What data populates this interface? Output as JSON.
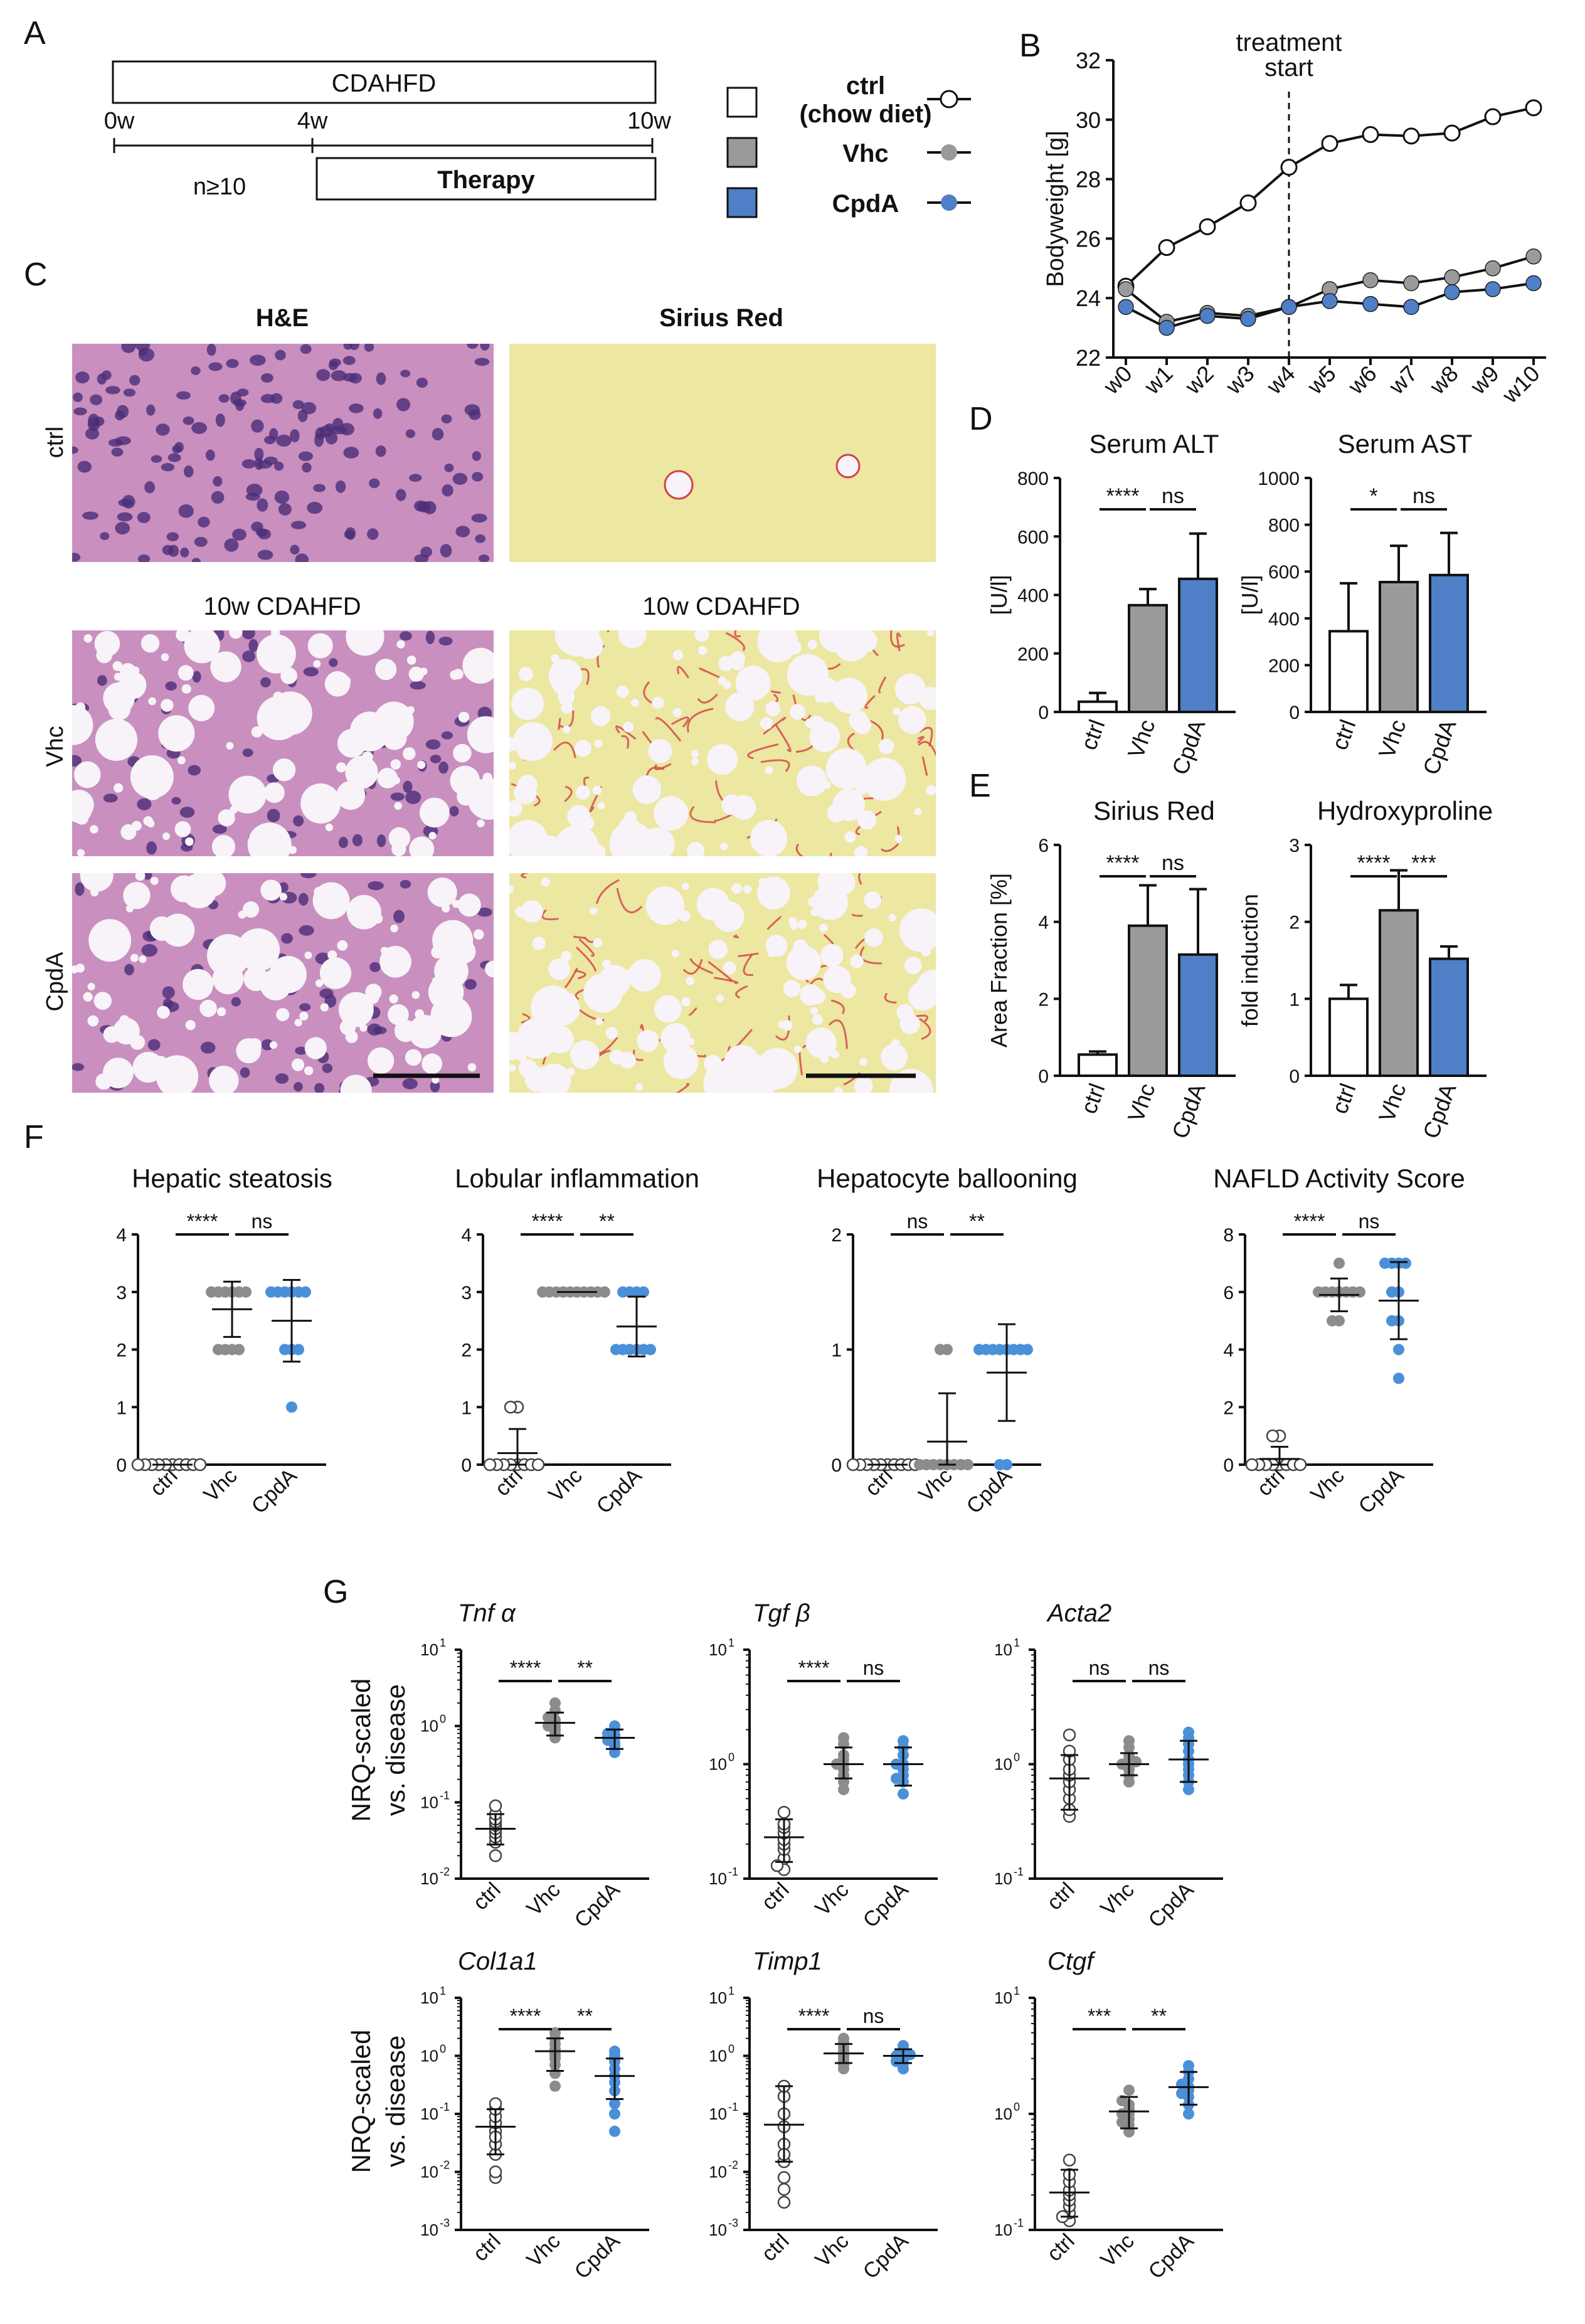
{
  "panel_letters": {
    "A": "A",
    "B": "B",
    "C": "C",
    "D": "D",
    "E": "E",
    "F": "F",
    "G": "G"
  },
  "scheme": {
    "diet_label": "CDAHFD",
    "therapy_label": "Therapy",
    "n_label": "n≥10",
    "timepoints": [
      "0w",
      "4w",
      "10w"
    ]
  },
  "legend": [
    {
      "label": "ctrl",
      "sublabel": "(chow diet)",
      "color": "#ffffff"
    },
    {
      "label": "Vhc",
      "sublabel": "",
      "color": "#9a9a9a"
    },
    {
      "label": "CpdA",
      "sublabel": "",
      "color": "#4f7fc7"
    }
  ],
  "histology": {
    "col_titles": [
      "H&E",
      "Sirius Red"
    ],
    "row_labels": [
      "ctrl",
      "Vhc",
      "CpdA"
    ],
    "section_label": "10w CDAHFD",
    "colors": {
      "he_bg": "#c98fbf",
      "he_nuclei": "#4b2d78",
      "sr_bg": "#ece7a1",
      "sr_fiber": "#d4404a",
      "vacuole": "#f7f3f8"
    }
  },
  "chart_data": [
    {
      "id": "B",
      "type": "line",
      "x": [
        "w0",
        "w1",
        "w2",
        "w3",
        "w4",
        "w5",
        "w6",
        "w7",
        "w8",
        "w9",
        "w10"
      ],
      "series": [
        {
          "name": "ctrl",
          "color": "#ffffff",
          "values": [
            24.4,
            25.7,
            26.4,
            27.2,
            28.4,
            29.2,
            29.5,
            29.45,
            29.55,
            30.1,
            30.4
          ]
        },
        {
          "name": "Vhc",
          "color": "#9a9a9a",
          "values": [
            24.3,
            23.2,
            23.5,
            23.4,
            23.7,
            24.3,
            24.6,
            24.5,
            24.7,
            25.0,
            25.4
          ]
        },
        {
          "name": "CpdA",
          "color": "#4f7fc7",
          "values": [
            23.7,
            23.0,
            23.4,
            23.3,
            23.7,
            23.9,
            23.8,
            23.7,
            24.2,
            24.3,
            24.5
          ]
        }
      ],
      "ylabel": "Bodyweight [g]",
      "ylim": [
        22,
        32
      ],
      "yticks": [
        22,
        24,
        26,
        28,
        30,
        32
      ],
      "annotation": "treatment start"
    },
    {
      "id": "D1",
      "type": "bar",
      "title": "Serum ALT",
      "ylabel": "[U/l]",
      "categories": [
        "ctrl",
        "Vhc",
        "CpdA"
      ],
      "values": [
        35,
        365,
        455
      ],
      "errors": [
        30,
        55,
        155
      ],
      "ylim": [
        0,
        800
      ],
      "yticks": [
        0,
        200,
        400,
        600,
        800
      ],
      "significance": [
        {
          "from": 0,
          "to": 1,
          "label": "****"
        },
        {
          "from": 1,
          "to": 2,
          "label": "ns"
        }
      ]
    },
    {
      "id": "D2",
      "type": "bar",
      "title": "Serum AST",
      "ylabel": "[U/l]",
      "categories": [
        "ctrl",
        "Vhc",
        "CpdA"
      ],
      "values": [
        345,
        555,
        585
      ],
      "errors": [
        205,
        155,
        180
      ],
      "ylim": [
        0,
        1000
      ],
      "yticks": [
        0,
        200,
        400,
        600,
        800,
        1000
      ],
      "significance": [
        {
          "from": 0,
          "to": 1,
          "label": "*"
        },
        {
          "from": 1,
          "to": 2,
          "label": "ns"
        }
      ]
    },
    {
      "id": "E1",
      "type": "bar",
      "title": "Sirius Red",
      "ylabel": "Area Fraction [%]",
      "categories": [
        "ctrl",
        "Vhc",
        "CpdA"
      ],
      "values": [
        0.55,
        3.9,
        3.15
      ],
      "errors": [
        0.08,
        1.05,
        1.7
      ],
      "ylim": [
        0,
        6
      ],
      "yticks": [
        0,
        2,
        4,
        6
      ],
      "significance": [
        {
          "from": 0,
          "to": 1,
          "label": "****"
        },
        {
          "from": 1,
          "to": 2,
          "label": "ns"
        }
      ]
    },
    {
      "id": "E2",
      "type": "bar",
      "title": "Hydroxyproline",
      "ylabel": "fold induction",
      "categories": [
        "ctrl",
        "Vhc",
        "CpdA"
      ],
      "values": [
        1.0,
        2.15,
        1.52
      ],
      "errors": [
        0.18,
        0.52,
        0.16
      ],
      "ylim": [
        0,
        3
      ],
      "yticks": [
        0,
        1,
        2,
        3
      ],
      "significance": [
        {
          "from": 0,
          "to": 1,
          "label": "****"
        },
        {
          "from": 1,
          "to": 2,
          "label": "***"
        }
      ]
    },
    {
      "id": "F1",
      "type": "scatter",
      "title": "Hepatic steatosis",
      "categories": [
        "ctrl",
        "Vhc",
        "CpdA"
      ],
      "ylim": [
        0,
        4
      ],
      "yticks": [
        0,
        1,
        2,
        3,
        4
      ],
      "groups": [
        {
          "mean": 0,
          "sd": 0,
          "points": [
            0,
            0,
            0,
            0,
            0,
            0,
            0,
            0,
            0,
            0
          ]
        },
        {
          "mean": 2.7,
          "sd": 0.48,
          "points": [
            3,
            3,
            3,
            3,
            3,
            3,
            2,
            2,
            2,
            2
          ]
        },
        {
          "mean": 2.5,
          "sd": 0.71,
          "points": [
            3,
            3,
            3,
            3,
            3,
            3,
            2,
            2,
            2,
            1
          ]
        }
      ],
      "significance": [
        {
          "from": 0,
          "to": 1,
          "label": "****"
        },
        {
          "from": 1,
          "to": 2,
          "label": "ns"
        }
      ]
    },
    {
      "id": "F2",
      "type": "scatter",
      "title": "Lobular inflammation",
      "categories": [
        "ctrl",
        "Vhc",
        "CpdA"
      ],
      "ylim": [
        0,
        4
      ],
      "yticks": [
        0,
        1,
        2,
        3,
        4
      ],
      "groups": [
        {
          "mean": 0.2,
          "sd": 0.42,
          "points": [
            1,
            1,
            0,
            0,
            0,
            0,
            0,
            0,
            0,
            0
          ]
        },
        {
          "mean": 3.0,
          "sd": 0,
          "points": [
            3,
            3,
            3,
            3,
            3,
            3,
            3,
            3,
            3,
            3
          ]
        },
        {
          "mean": 2.4,
          "sd": 0.52,
          "points": [
            3,
            3,
            3,
            3,
            2,
            2,
            2,
            2,
            2,
            2
          ]
        }
      ],
      "significance": [
        {
          "from": 0,
          "to": 1,
          "label": "****"
        },
        {
          "from": 1,
          "to": 2,
          "label": "**"
        }
      ]
    },
    {
      "id": "F3",
      "type": "scatter",
      "title": "Hepatocyte ballooning",
      "categories": [
        "ctrl",
        "Vhc",
        "CpdA"
      ],
      "ylim": [
        0,
        2
      ],
      "yticks": [
        0,
        1,
        2
      ],
      "groups": [
        {
          "mean": 0,
          "sd": 0,
          "points": [
            0,
            0,
            0,
            0,
            0,
            0,
            0,
            0,
            0,
            0
          ]
        },
        {
          "mean": 0.2,
          "sd": 0.42,
          "points": [
            1,
            1,
            0,
            0,
            0,
            0,
            0,
            0,
            0,
            0
          ]
        },
        {
          "mean": 0.8,
          "sd": 0.42,
          "points": [
            1,
            1,
            1,
            1,
            1,
            1,
            1,
            1,
            0,
            0
          ]
        }
      ],
      "significance": [
        {
          "from": 0,
          "to": 1,
          "label": "ns"
        },
        {
          "from": 1,
          "to": 2,
          "label": "**"
        }
      ]
    },
    {
      "id": "F4",
      "type": "scatter",
      "title": "NAFLD Activity Score",
      "categories": [
        "ctrl",
        "Vhc",
        "CpdA"
      ],
      "ylim": [
        0,
        8
      ],
      "yticks": [
        0,
        2,
        4,
        6,
        8
      ],
      "groups": [
        {
          "mean": 0.2,
          "sd": 0.42,
          "points": [
            1,
            1,
            0,
            0,
            0,
            0,
            0,
            0,
            0,
            0
          ]
        },
        {
          "mean": 5.9,
          "sd": 0.57,
          "points": [
            7,
            6,
            6,
            6,
            6,
            6,
            6,
            6,
            5,
            5
          ]
        },
        {
          "mean": 5.7,
          "sd": 1.34,
          "points": [
            7,
            7,
            7,
            7,
            6,
            6,
            5,
            5,
            4,
            3
          ]
        }
      ],
      "significance": [
        {
          "from": 0,
          "to": 1,
          "label": "****"
        },
        {
          "from": 1,
          "to": 2,
          "label": "ns"
        }
      ]
    },
    {
      "id": "G1",
      "type": "scatter",
      "scale": "log",
      "title": "Tnf α",
      "categories": [
        "ctrl",
        "Vhc",
        "CpdA"
      ],
      "ylim_exp": [
        -2,
        1
      ],
      "yticks_exp": [
        -2,
        -1,
        0,
        1
      ],
      "groups": [
        {
          "mean": 0.045,
          "lo": 0.028,
          "hi": 0.07,
          "points": [
            0.03,
            0.035,
            0.04,
            0.045,
            0.05,
            0.055,
            0.06,
            0.07,
            0.09,
            0.02
          ]
        },
        {
          "mean": 1.1,
          "lo": 0.75,
          "hi": 1.5,
          "points": [
            0.7,
            0.8,
            0.9,
            1.0,
            1.0,
            1.1,
            1.2,
            1.3,
            1.6,
            2.0
          ]
        },
        {
          "mean": 0.7,
          "lo": 0.5,
          "hi": 0.9,
          "points": [
            0.45,
            0.55,
            0.6,
            0.65,
            0.7,
            0.7,
            0.75,
            0.8,
            0.9,
            1.0
          ]
        }
      ],
      "significance": [
        {
          "from": 0,
          "to": 1,
          "label": "****"
        },
        {
          "from": 1,
          "to": 2,
          "label": "**"
        }
      ]
    },
    {
      "id": "G2",
      "type": "scatter",
      "scale": "log",
      "title": "Tgf β",
      "categories": [
        "ctrl",
        "Vhc",
        "CpdA"
      ],
      "ylim_exp": [
        -1,
        1
      ],
      "yticks_exp": [
        -1,
        0,
        1
      ],
      "groups": [
        {
          "mean": 0.23,
          "lo": 0.14,
          "hi": 0.33,
          "points": [
            0.12,
            0.15,
            0.18,
            0.2,
            0.22,
            0.25,
            0.28,
            0.3,
            0.38,
            0.13
          ]
        },
        {
          "mean": 1.0,
          "lo": 0.75,
          "hi": 1.4,
          "points": [
            0.6,
            0.7,
            0.8,
            0.9,
            1.0,
            1.0,
            1.1,
            1.2,
            1.5,
            1.7
          ]
        },
        {
          "mean": 1.0,
          "lo": 0.65,
          "hi": 1.4,
          "points": [
            0.55,
            0.7,
            0.8,
            0.9,
            1.0,
            1.0,
            1.2,
            1.4,
            1.6,
            0.75
          ]
        }
      ],
      "significance": [
        {
          "from": 0,
          "to": 1,
          "label": "****"
        },
        {
          "from": 1,
          "to": 2,
          "label": "ns"
        }
      ]
    },
    {
      "id": "G3",
      "type": "scatter",
      "scale": "log",
      "title": "Acta2",
      "categories": [
        "ctrl",
        "Vhc",
        "CpdA"
      ],
      "ylim_exp": [
        -1,
        1
      ],
      "yticks_exp": [
        -1,
        0,
        1
      ],
      "groups": [
        {
          "mean": 0.75,
          "lo": 0.4,
          "hi": 1.2,
          "points": [
            0.35,
            0.4,
            0.5,
            0.6,
            0.7,
            0.8,
            0.9,
            1.1,
            1.3,
            1.8
          ]
        },
        {
          "mean": 1.0,
          "lo": 0.8,
          "hi": 1.25,
          "points": [
            0.7,
            0.8,
            0.9,
            1.0,
            1.0,
            1.05,
            1.1,
            1.2,
            1.4,
            1.6
          ]
        },
        {
          "mean": 1.1,
          "lo": 0.7,
          "hi": 1.6,
          "points": [
            0.6,
            0.7,
            0.8,
            0.9,
            1.0,
            1.1,
            1.3,
            1.5,
            1.7,
            1.9
          ]
        }
      ],
      "significance": [
        {
          "from": 0,
          "to": 1,
          "label": "ns"
        },
        {
          "from": 1,
          "to": 2,
          "label": "ns"
        }
      ]
    },
    {
      "id": "G4",
      "type": "scatter",
      "scale": "log",
      "title": "Col1a1",
      "categories": [
        "ctrl",
        "Vhc",
        "CpdA"
      ],
      "ylim_exp": [
        -3,
        1
      ],
      "yticks_exp": [
        -3,
        -2,
        -1,
        0,
        1
      ],
      "groups": [
        {
          "mean": 0.06,
          "lo": 0.02,
          "hi": 0.12,
          "points": [
            0.008,
            0.01,
            0.02,
            0.03,
            0.05,
            0.07,
            0.09,
            0.12,
            0.15,
            0.04
          ]
        },
        {
          "mean": 1.2,
          "lo": 0.55,
          "hi": 2.0,
          "points": [
            0.3,
            0.5,
            0.7,
            0.9,
            1.1,
            1.3,
            1.6,
            2.0,
            2.5,
            1.0
          ]
        },
        {
          "mean": 0.45,
          "lo": 0.18,
          "hi": 0.9,
          "points": [
            0.05,
            0.1,
            0.15,
            0.25,
            0.35,
            0.45,
            0.6,
            0.8,
            1.0,
            1.2
          ]
        }
      ],
      "significance": [
        {
          "from": 0,
          "to": 1,
          "label": "****"
        },
        {
          "from": 1,
          "to": 2,
          "label": "**"
        }
      ]
    },
    {
      "id": "G5",
      "type": "scatter",
      "scale": "log",
      "title": "Timp1",
      "categories": [
        "ctrl",
        "Vhc",
        "CpdA"
      ],
      "ylim_exp": [
        -3,
        1
      ],
      "yticks_exp": [
        -3,
        -2,
        -1,
        0,
        1
      ],
      "groups": [
        {
          "mean": 0.065,
          "lo": 0.015,
          "hi": 0.3,
          "points": [
            0.003,
            0.005,
            0.008,
            0.015,
            0.03,
            0.06,
            0.1,
            0.2,
            0.3,
            0.02
          ]
        },
        {
          "mean": 1.1,
          "lo": 0.75,
          "hi": 1.6,
          "points": [
            0.6,
            0.7,
            0.8,
            0.9,
            1.0,
            1.1,
            1.2,
            1.4,
            1.7,
            2.0
          ]
        },
        {
          "mean": 1.0,
          "lo": 0.75,
          "hi": 1.3,
          "points": [
            0.6,
            0.75,
            0.85,
            0.95,
            1.0,
            1.05,
            1.15,
            1.3,
            1.5,
            0.8
          ]
        }
      ],
      "significance": [
        {
          "from": 0,
          "to": 1,
          "label": "****"
        },
        {
          "from": 1,
          "to": 2,
          "label": "ns"
        }
      ]
    },
    {
      "id": "G6",
      "type": "scatter",
      "scale": "log",
      "title": "Ctgf",
      "categories": [
        "ctrl",
        "Vhc",
        "CpdA"
      ],
      "ylim_exp": [
        -1,
        1
      ],
      "yticks_exp": [
        -1,
        0,
        1
      ],
      "groups": [
        {
          "mean": 0.21,
          "lo": 0.13,
          "hi": 0.33,
          "points": [
            0.12,
            0.14,
            0.16,
            0.18,
            0.2,
            0.22,
            0.26,
            0.3,
            0.4,
            0.13
          ]
        },
        {
          "mean": 1.05,
          "lo": 0.75,
          "hi": 1.4,
          "points": [
            0.7,
            0.8,
            0.9,
            1.0,
            1.0,
            1.1,
            1.2,
            1.3,
            1.6,
            0.85
          ]
        },
        {
          "mean": 1.7,
          "lo": 1.2,
          "hi": 2.3,
          "points": [
            1.0,
            1.2,
            1.4,
            1.6,
            1.7,
            1.8,
            2.0,
            2.3,
            2.6,
            1.5
          ]
        }
      ],
      "significance": [
        {
          "from": 0,
          "to": 1,
          "label": "***"
        },
        {
          "from": 1,
          "to": 2,
          "label": "**"
        }
      ]
    }
  ],
  "g_ylabel": [
    "NRQ-scaled",
    "vs. disease"
  ],
  "scale_bar": true
}
